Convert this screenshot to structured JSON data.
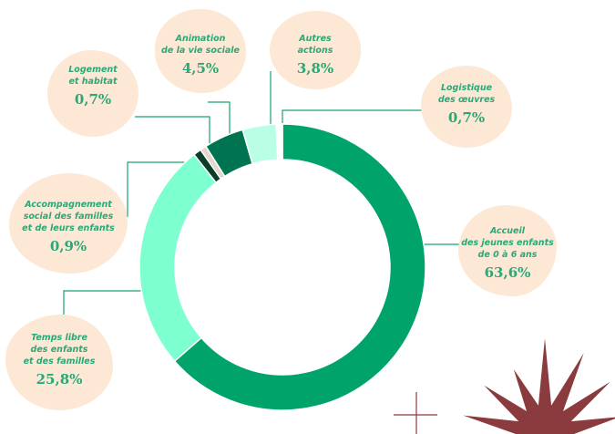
{
  "chart_data": {
    "type": "pie",
    "title": "",
    "labels": [
      {
        "text": "Accueil\ndes jeunes enfants\nde 0 à 6 ans",
        "value_text": "63,6%"
      },
      {
        "text": "Temps libre\ndes enfants\net des familles",
        "value_text": "25,8%"
      },
      {
        "text": "Accompagnement\nsocial des familles\net de leurs enfants",
        "value_text": "0,9%"
      },
      {
        "text": "Logement\net habitat",
        "value_text": "0,7%"
      },
      {
        "text": "Animation\nde la vie sociale",
        "value_text": "4,5%"
      },
      {
        "text": "Autres\nactions",
        "value_text": "3,8%"
      },
      {
        "text": "Logistique\ndes œuvres",
        "value_text": "0,7%"
      }
    ],
    "values": [
      63.6,
      25.8,
      0.9,
      0.7,
      4.5,
      3.8,
      0.7
    ],
    "colors": [
      "#00a46b",
      "#7effd0",
      "#0b3d2b",
      "#e3d6ce",
      "#007450",
      "#b8ffe6",
      "#ffffff"
    ],
    "donut": true,
    "legend": "none"
  },
  "decor_colors": {
    "label_bubble": "#fde8d6",
    "label_text": "#2aa876",
    "leader_line": "#19a46c",
    "star": "#8b3b3e"
  }
}
